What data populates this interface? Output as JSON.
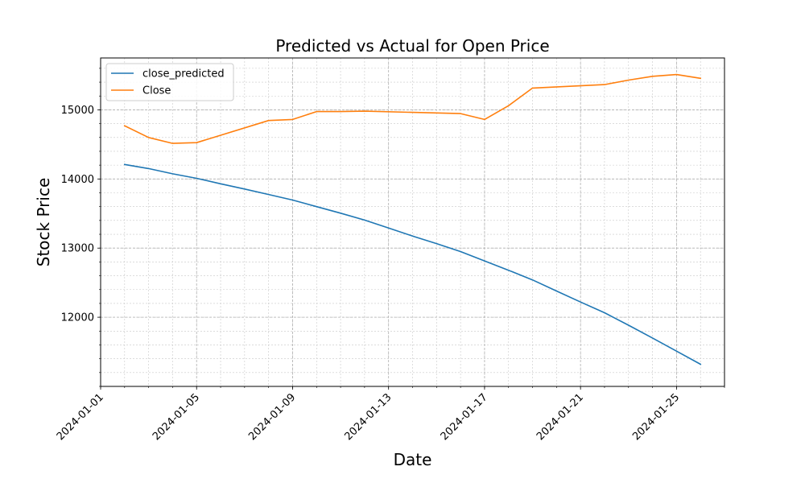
{
  "chart_data": {
    "type": "line",
    "title": "Predicted vs Actual for Open Price",
    "xlabel": "Date",
    "ylabel": "Stock Price",
    "x_axis_type": "date",
    "xlim": [
      "2024-01-01",
      "2024-01-27"
    ],
    "ylim": [
      11000,
      15750
    ],
    "x_ticks": [
      "2024-01-01",
      "2024-01-05",
      "2024-01-09",
      "2024-01-13",
      "2024-01-17",
      "2024-01-21",
      "2024-01-25"
    ],
    "y_ticks": [
      12000,
      13000,
      14000,
      15000
    ],
    "grid": true,
    "grid_minor": true,
    "legend_position": "upper-left",
    "series": [
      {
        "name": "close_predicted",
        "color": "#1f77b4",
        "points": [
          {
            "x": "2024-01-02",
            "y": 14210
          },
          {
            "x": "2024-01-03",
            "y": 14150
          },
          {
            "x": "2024-01-04",
            "y": 14075
          },
          {
            "x": "2024-01-05",
            "y": 14010
          },
          {
            "x": "2024-01-06",
            "y": 13930
          },
          {
            "x": "2024-01-07",
            "y": 13855
          },
          {
            "x": "2024-01-08",
            "y": 13775
          },
          {
            "x": "2024-01-09",
            "y": 13695
          },
          {
            "x": "2024-01-10",
            "y": 13600
          },
          {
            "x": "2024-01-11",
            "y": 13505
          },
          {
            "x": "2024-01-12",
            "y": 13405
          },
          {
            "x": "2024-01-13",
            "y": 13290
          },
          {
            "x": "2024-01-14",
            "y": 13175
          },
          {
            "x": "2024-01-15",
            "y": 13065
          },
          {
            "x": "2024-01-16",
            "y": 12950
          },
          {
            "x": "2024-01-17",
            "y": 12815
          },
          {
            "x": "2024-01-18",
            "y": 12680
          },
          {
            "x": "2024-01-19",
            "y": 12540
          },
          {
            "x": "2024-01-20",
            "y": 12380
          },
          {
            "x": "2024-01-21",
            "y": 12220
          },
          {
            "x": "2024-01-22",
            "y": 12065
          },
          {
            "x": "2024-01-23",
            "y": 11885
          },
          {
            "x": "2024-01-24",
            "y": 11700
          },
          {
            "x": "2024-01-25",
            "y": 11510
          },
          {
            "x": "2024-01-26",
            "y": 11320
          }
        ]
      },
      {
        "name": "Close",
        "color": "#ff7f0e",
        "points": [
          {
            "x": "2024-01-02",
            "y": 14770
          },
          {
            "x": "2024-01-03",
            "y": 14600
          },
          {
            "x": "2024-01-04",
            "y": 14515
          },
          {
            "x": "2024-01-05",
            "y": 14525
          },
          {
            "x": "2024-01-08",
            "y": 14845
          },
          {
            "x": "2024-01-09",
            "y": 14860
          },
          {
            "x": "2024-01-10",
            "y": 14975
          },
          {
            "x": "2024-01-11",
            "y": 14975
          },
          {
            "x": "2024-01-12",
            "y": 14980
          },
          {
            "x": "2024-01-16",
            "y": 14945
          },
          {
            "x": "2024-01-17",
            "y": 14860
          },
          {
            "x": "2024-01-18",
            "y": 15060
          },
          {
            "x": "2024-01-19",
            "y": 15315
          },
          {
            "x": "2024-01-22",
            "y": 15365
          },
          {
            "x": "2024-01-23",
            "y": 15430
          },
          {
            "x": "2024-01-24",
            "y": 15485
          },
          {
            "x": "2024-01-25",
            "y": 15510
          },
          {
            "x": "2024-01-26",
            "y": 15455
          }
        ]
      }
    ]
  }
}
